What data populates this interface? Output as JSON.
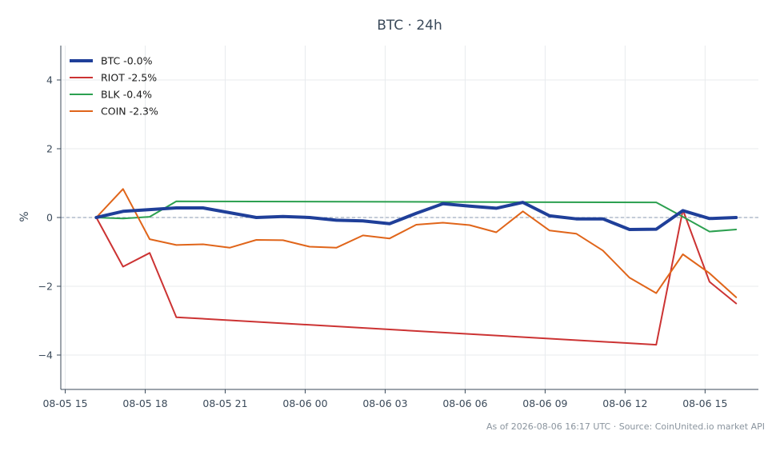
{
  "chart_data": {
    "type": "line",
    "title": "BTC · 24h",
    "xlabel": "",
    "ylabel": "%",
    "ylim": [
      -5,
      5
    ],
    "xlim": [
      "2026-08-05 14:50",
      "2026-08-06 17:00"
    ],
    "x_ticks": [
      {
        "t": "2026-08-05 15:00",
        "label": "08-05 15"
      },
      {
        "t": "2026-08-05 18:00",
        "label": "08-05 18"
      },
      {
        "t": "2026-08-05 21:00",
        "label": "08-05 21"
      },
      {
        "t": "2026-08-06 00:00",
        "label": "08-06 00"
      },
      {
        "t": "2026-08-06 03:00",
        "label": "08-06 03"
      },
      {
        "t": "2026-08-06 06:00",
        "label": "08-06 06"
      },
      {
        "t": "2026-08-06 09:00",
        "label": "08-06 09"
      },
      {
        "t": "2026-08-06 12:00",
        "label": "08-06 12"
      },
      {
        "t": "2026-08-06 15:00",
        "label": "08-06 15"
      }
    ],
    "y_ticks": [
      {
        "value": 4,
        "label": "4"
      },
      {
        "value": 2,
        "label": "2"
      },
      {
        "value": 0,
        "label": "0"
      },
      {
        "value": -2,
        "label": "−2"
      },
      {
        "value": -4,
        "label": "−4"
      }
    ],
    "grid": true,
    "zero_line": true,
    "legend_position": "top-left",
    "x": [
      "2026-08-05 16:10",
      "2026-08-05 17:10",
      "2026-08-05 18:10",
      "2026-08-05 19:10",
      "2026-08-05 20:10",
      "2026-08-05 21:10",
      "2026-08-05 22:10",
      "2026-08-05 23:10",
      "2026-08-06 00:10",
      "2026-08-06 01:10",
      "2026-08-06 02:10",
      "2026-08-06 03:10",
      "2026-08-06 04:10",
      "2026-08-06 05:10",
      "2026-08-06 06:10",
      "2026-08-06 07:10",
      "2026-08-06 08:10",
      "2026-08-06 09:10",
      "2026-08-06 10:10",
      "2026-08-06 11:10",
      "2026-08-06 12:10",
      "2026-08-06 13:10",
      "2026-08-06 14:10",
      "2026-08-06 15:10",
      "2026-08-06 16:10"
    ],
    "series": [
      {
        "name": "BTC -0.0%",
        "color": "#1f3f99",
        "width": 4,
        "values": [
          0.0,
          0.18,
          0.23,
          0.28,
          0.28,
          0.14,
          0.0,
          0.03,
          0.0,
          -0.08,
          -0.1,
          -0.18,
          0.12,
          0.4,
          0.33,
          0.27,
          0.44,
          0.05,
          -0.04,
          -0.04,
          -0.35,
          -0.34,
          0.2,
          -0.03,
          0.0
        ]
      },
      {
        "name": "RIOT -2.5%",
        "color": "#cc3333",
        "width": 2,
        "values": [
          0.0,
          -1.43,
          -1.03,
          -2.9,
          null,
          null,
          null,
          null,
          null,
          null,
          null,
          null,
          null,
          null,
          null,
          null,
          null,
          null,
          null,
          null,
          null,
          -3.7,
          0.22,
          -1.87,
          -2.5
        ]
      },
      {
        "name": "BLK -0.4%",
        "color": "#2ca050",
        "width": 2,
        "values": [
          0.0,
          -0.03,
          0.02,
          0.47,
          null,
          null,
          null,
          null,
          null,
          null,
          null,
          null,
          null,
          null,
          null,
          null,
          null,
          null,
          null,
          null,
          null,
          0.44,
          0.02,
          -0.41,
          -0.35
        ]
      },
      {
        "name": "COIN -2.3%",
        "color": "#e0651a",
        "width": 2,
        "values": [
          0.0,
          0.83,
          -0.63,
          -0.8,
          -0.78,
          -0.88,
          -0.65,
          -0.66,
          -0.85,
          -0.88,
          -0.52,
          -0.61,
          -0.21,
          -0.15,
          -0.22,
          -0.43,
          0.18,
          -0.38,
          -0.47,
          -0.96,
          -1.75,
          -2.2,
          -1.07,
          -1.62,
          -2.32
        ]
      }
    ]
  },
  "footer": {
    "text": "As of 2026-08-06 16:17 UTC · Source: CoinUnited.io market API"
  }
}
